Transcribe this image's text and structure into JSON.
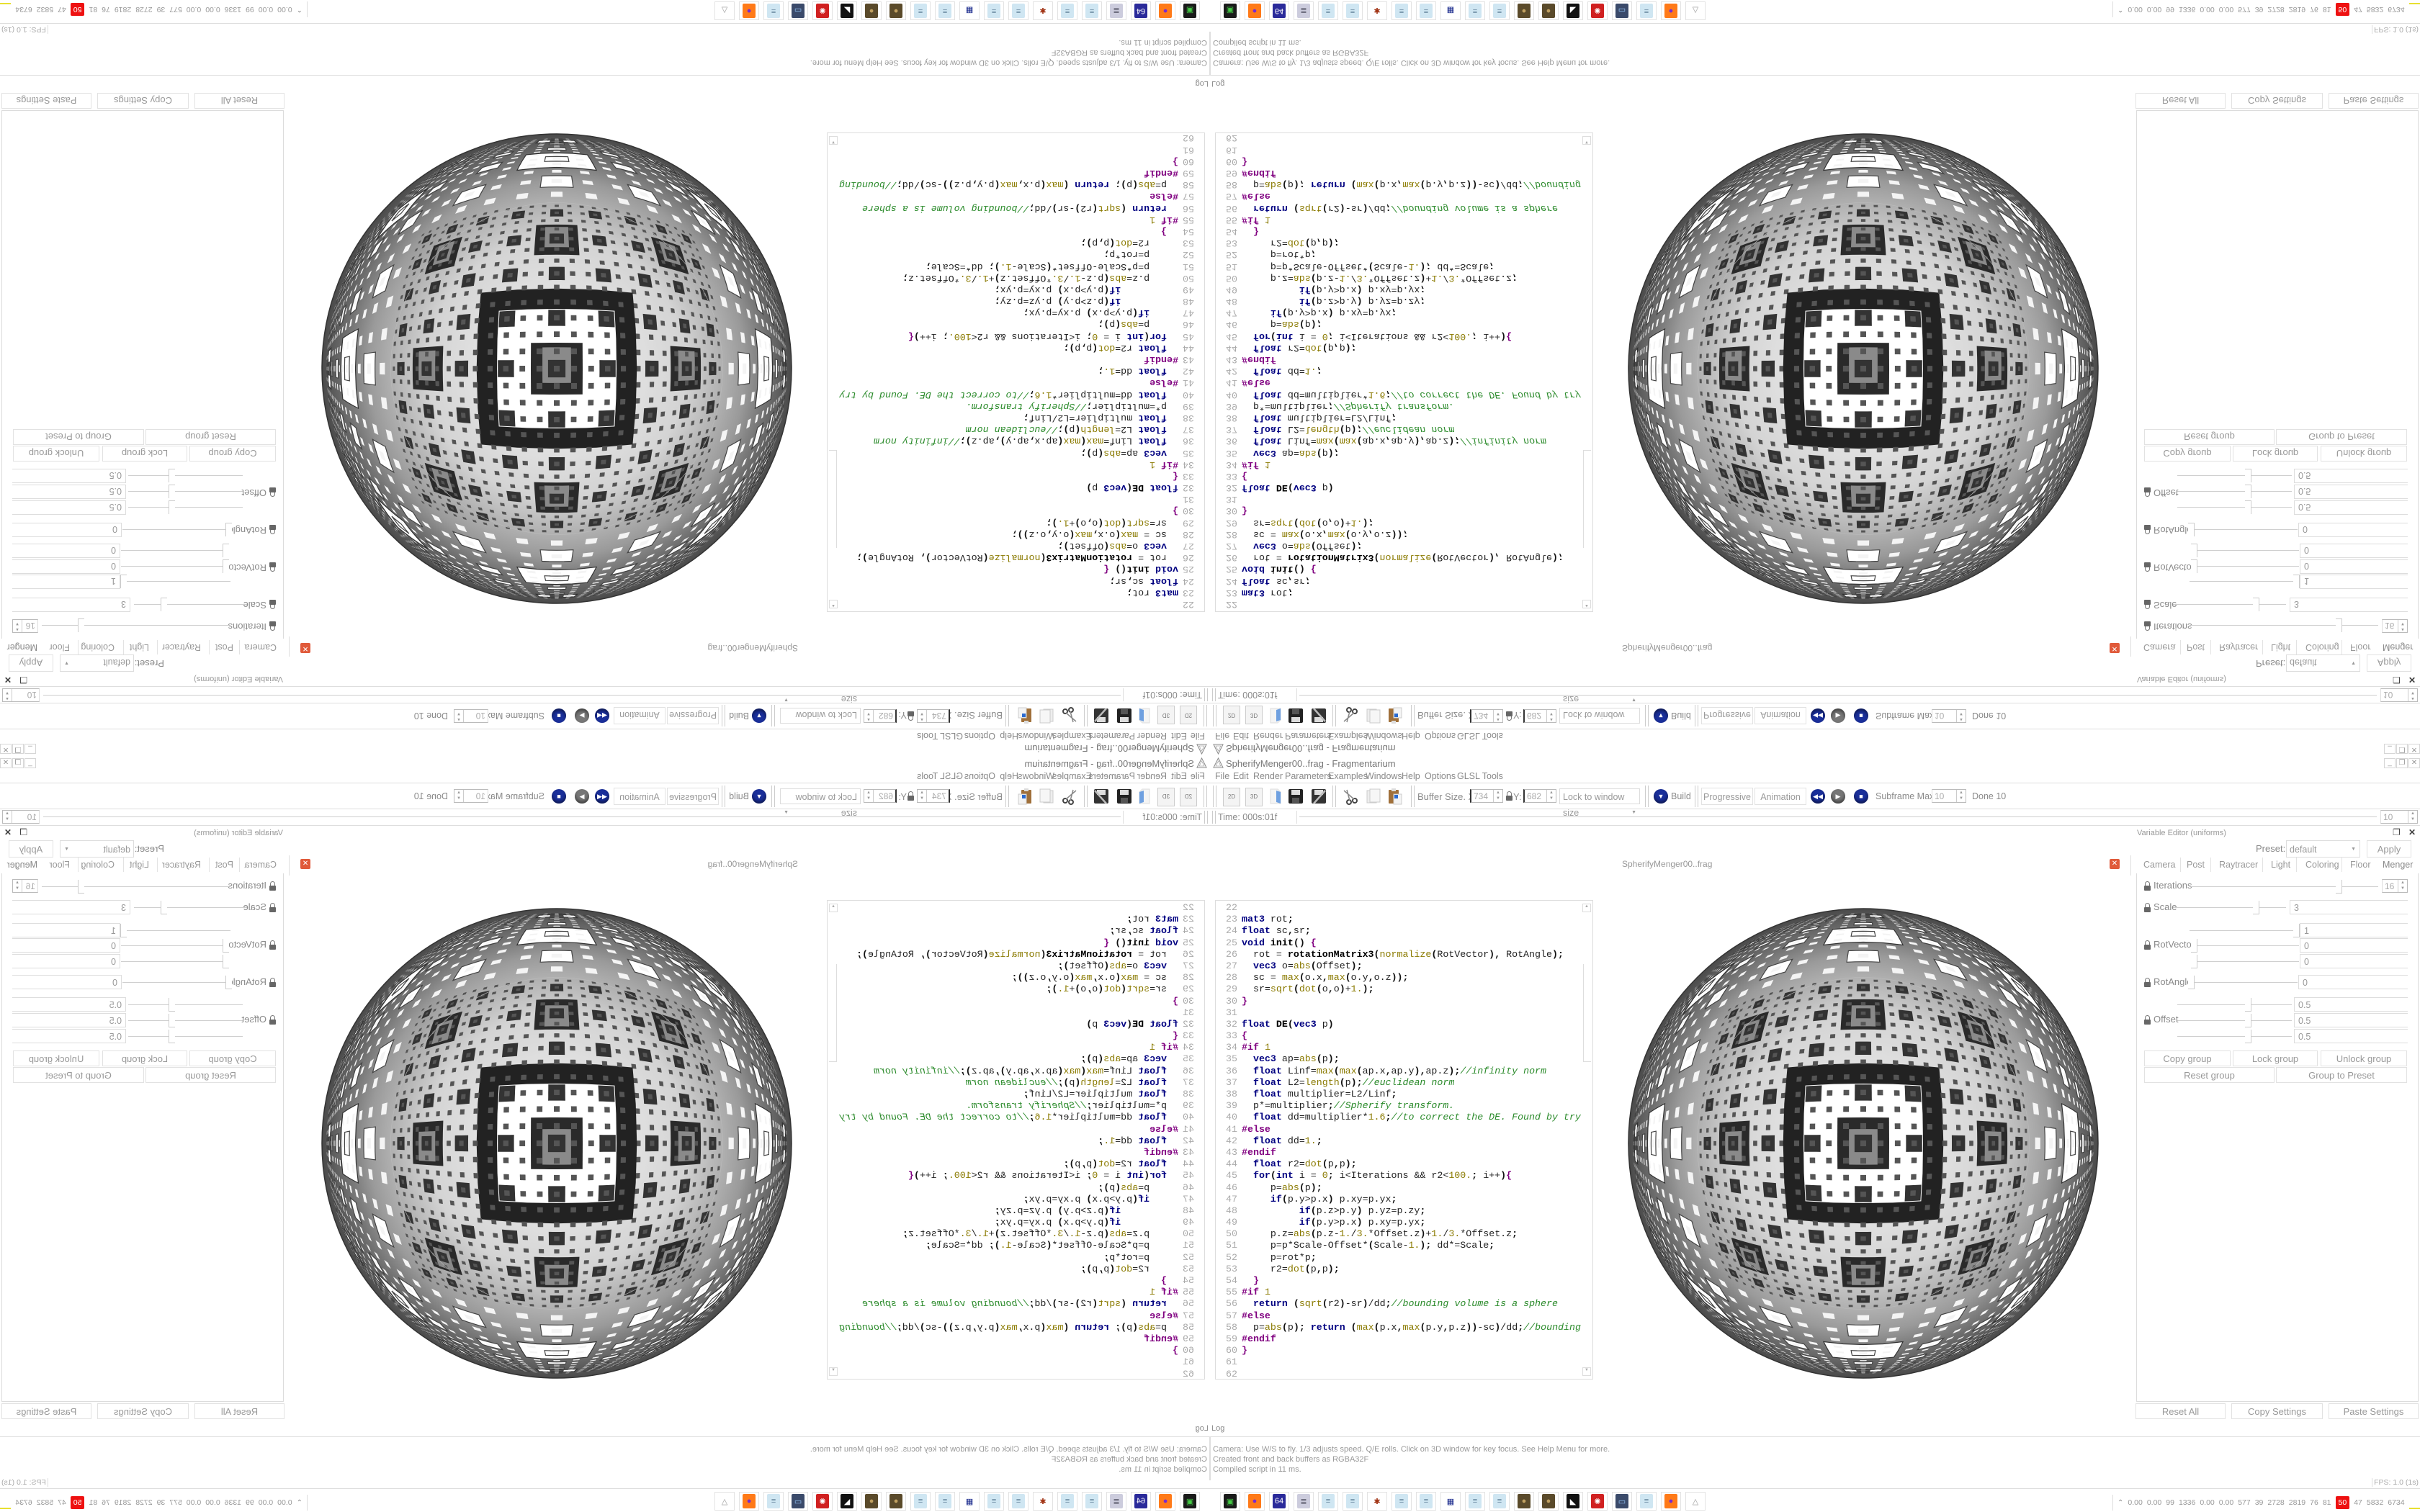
{
  "window": {
    "title": "SpherifyMenger00..frag - Fragmentarium",
    "controls": [
      "minimize-icon",
      "restore-icon",
      "close-icon"
    ]
  },
  "menu": [
    "File",
    "Edit",
    "Render",
    "Parameters",
    "Examples",
    "Windows",
    "Help",
    "Options",
    "GLSL Tools"
  ],
  "toolbar": {
    "btn_2d": "2D",
    "btn_3d": "3D",
    "buffer_label": "Buffer Size. X:",
    "buffer_x": "734",
    "y_label": "Y:",
    "buffer_y": "682",
    "lock_mode": "Lock to window size",
    "build": "Build",
    "progressive": "Progressive",
    "animation": "Animation",
    "subframe_label": "Subframe Max:",
    "subframe_max": "10",
    "done": "Done 10"
  },
  "timeline": {
    "time": "Time: 000s:01f",
    "frames": "10"
  },
  "editor": {
    "tab": "SpherifyMenger00..frag",
    "first_line": 22,
    "lines": [
      "",
      "mat3 rot;",
      "float sc,sr;",
      "void init() {",
      "  rot = rotationMatrix3(normalize(RotVector), RotAngle);",
      "  vec3 o=abs(Offset);",
      "  sc = max(o.x,max(o.y,o.z));",
      "  sr=sqrt(dot(o,o)+1.);",
      "}",
      "",
      "float DE(vec3 p)",
      "{",
      "#if 1",
      "  vec3 ap=abs(p);",
      "  float Linf=max(max(ap.x,ap.y),ap.z);//infinity norm",
      "  float L2=length(p);//euclidean norm",
      "  float multiplier=L2/Linf;",
      "  p*=multiplier;//Spherify transform.",
      "  float dd=multiplier*1.6;//to correct the DE. Found by try",
      "#else",
      "  float dd=1.;",
      "#endif",
      "  float r2=dot(p,p);",
      "  for(int i = 0; i<Iterations && r2<100.; i++){",
      "     p=abs(p);",
      "     if(p.y>p.x) p.xy=p.yx;",
      "          if(p.z>p.y) p.yz=p.zy;",
      "          if(p.y>p.x) p.xy=p.yx;",
      "     p.z=abs(p.z-1./3.*Offset.z)+1./3.*Offset.z;",
      "     p=p*Scale-Offset*(Scale-1.); dd*=Scale;",
      "     p=rot*p;",
      "     r2=dot(p,p);",
      "  }",
      "#if 1",
      "  return (sqrt(r2)-sr)/dd;//bounding volume is a sphere",
      "#else",
      "  p=abs(p); return (max(p.x,max(p.y,p.z))-sc)/dd;//bounding",
      "#endif",
      "}",
      "",
      ""
    ]
  },
  "variables": {
    "title": "Variable Editor (uniforms)",
    "preset_label": "Preset:",
    "preset": "default",
    "apply": "Apply",
    "tabs": [
      "Camera",
      "Post",
      "Raytracer",
      "Light",
      "Coloring",
      "Floor",
      "Menger"
    ],
    "active_tab": "Menger",
    "params": {
      "iterations": {
        "label": "Iterations",
        "value": "16",
        "slider": 0.8
      },
      "scale": {
        "label": "Scale",
        "value": "3",
        "slider": 0.74
      },
      "rotvector": {
        "label": "RotVector",
        "values": [
          "1",
          "0",
          "0"
        ],
        "sliders": [
          1.0,
          0.0,
          0.0
        ]
      },
      "rotangle": {
        "label": "RotAngle",
        "value": "0",
        "slider": 0.0
      },
      "offset": {
        "label": "Offset",
        "values": [
          "0.5",
          "0.5",
          "0.5"
        ],
        "sliders": [
          0.62,
          0.62,
          0.62
        ]
      }
    },
    "group_buttons": [
      "Copy group",
      "Lock group",
      "Unlock group",
      "Reset group",
      "Group to Preset"
    ],
    "bottom_buttons": [
      "Reset All",
      "Copy Settings",
      "Paste Settings"
    ]
  },
  "log": {
    "title": "Log",
    "lines": [
      "Camera: Use W/S to fly. 1/3 adjusts speed. Q/E rolls. Click on 3D window for key focus. See Help Menu for more.",
      "Created front and back buffers as RGBA32F",
      "Compiled script in 11 ms."
    ]
  },
  "status": {
    "fps": "FPS: 1.0 (1s)"
  },
  "taskbar": {
    "icons": [
      "terminal-icon",
      "firefox-icon",
      "floppy-64-icon",
      "scroll-icon",
      "notepad-icon",
      "notepad-icon",
      "splat-icon",
      "notepad-icon",
      "notepad-icon",
      "jpeg-viewer-icon",
      "notepad-icon",
      "notepad-icon",
      "coin-icon",
      "coin-icon",
      "wolf-icon",
      "red-gear-icon",
      "monitor-icon",
      "notepad-icon",
      "firefox-icon",
      "fragmentarium-icon"
    ],
    "tray_numbers": [
      "0.00",
      "0.00",
      "99",
      "1336",
      "0.00",
      "0.00",
      "577",
      "39",
      "2728",
      "2819",
      "76",
      "81",
      "50",
      "47",
      "5832",
      "6734"
    ],
    "tray_highlight": "50",
    "tray_highlight_color": "#ee1111",
    "graph_colors": [
      "#e8e030",
      "#6020a0",
      "#8a8a10",
      "#8a4a10",
      "#1a3a8a",
      "#8a4a10",
      "#40c040",
      "#8a0a0a"
    ]
  },
  "colors": {
    "accent_blue": "#1a2f9a",
    "close_red": "#e05a3a",
    "keyword": "#000080",
    "comment": "#2a8a2a",
    "preprocessor": "#800080"
  }
}
